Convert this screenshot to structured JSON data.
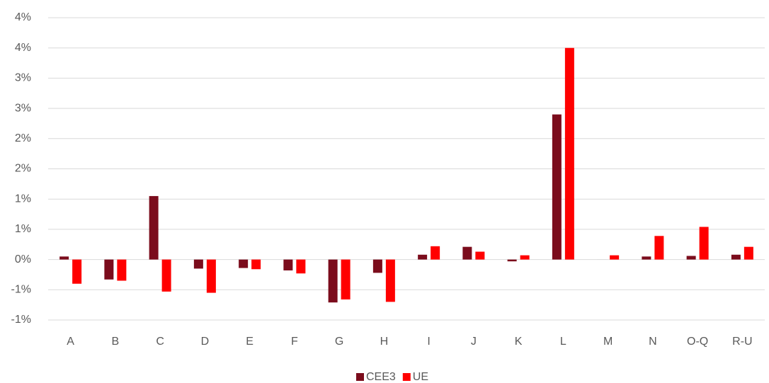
{
  "chart_data": {
    "type": "bar",
    "categories": [
      "A",
      "B",
      "C",
      "D",
      "E",
      "F",
      "G",
      "H",
      "I",
      "J",
      "K",
      "L",
      "M",
      "N",
      "O-Q",
      "R-U"
    ],
    "series": [
      {
        "name": "CEE3",
        "color": "#7b0c1c",
        "values": [
          0.05,
          -0.33,
          1.05,
          -0.15,
          -0.14,
          -0.18,
          -0.71,
          -0.22,
          0.08,
          0.21,
          -0.03,
          2.4,
          0,
          0.05,
          0.06,
          0.08
        ]
      },
      {
        "name": "UE",
        "color": "#ff0000",
        "values": [
          -0.4,
          -0.35,
          -0.53,
          -0.55,
          -0.16,
          -0.23,
          -0.66,
          -0.7,
          0.22,
          0.13,
          0.07,
          3.5,
          0.07,
          0.39,
          0.54,
          0.21
        ]
      }
    ],
    "ylim": [
      -1,
      4
    ],
    "yticks": [
      {
        "value": -1,
        "label": "-1%"
      },
      {
        "value": -0.5,
        "label": "-1%"
      },
      {
        "value": 0,
        "label": "0%"
      },
      {
        "value": 0.5,
        "label": "1%"
      },
      {
        "value": 1,
        "label": "1%"
      },
      {
        "value": 1.5,
        "label": "2%"
      },
      {
        "value": 2,
        "label": "2%"
      },
      {
        "value": 2.5,
        "label": "3%"
      },
      {
        "value": 3,
        "label": "3%"
      },
      {
        "value": 3.5,
        "label": "4%"
      },
      {
        "value": 4,
        "label": "4%"
      }
    ],
    "grid": true,
    "legend": "bottom"
  }
}
